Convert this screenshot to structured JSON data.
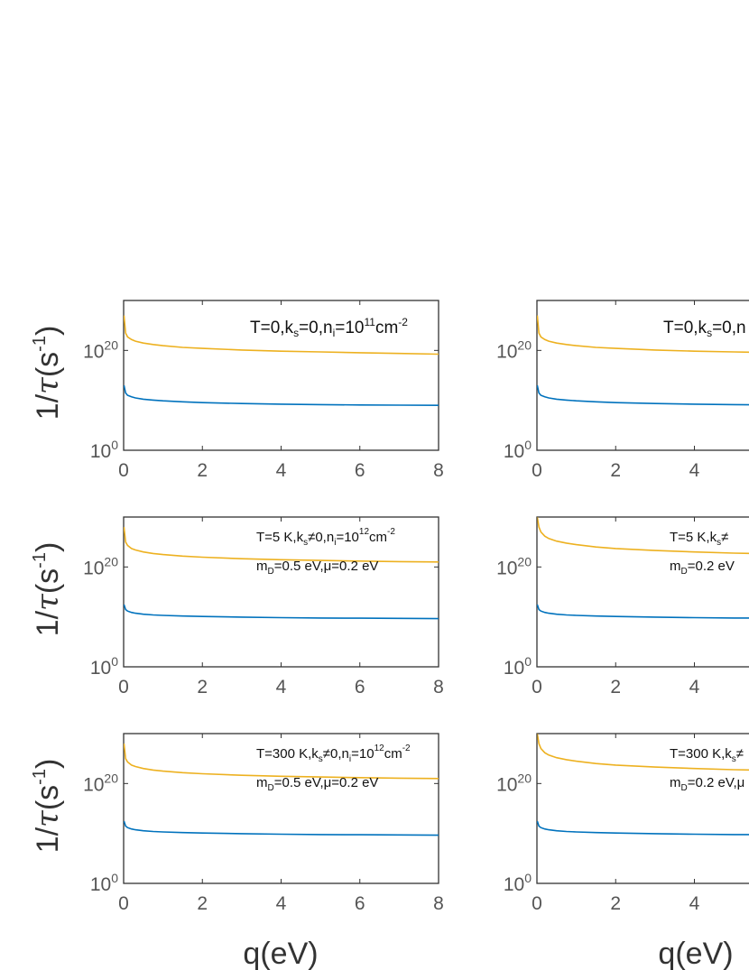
{
  "colors": {
    "series_a": "#EDB120",
    "series_b": "#0072BD",
    "axes": "#333333",
    "tick_text": "#555555"
  },
  "ylabel": {
    "main": "1/",
    "tau": "τ",
    "open": "(s",
    "exp": "-1",
    "close": ")"
  },
  "xlabel": "q(eV)",
  "chart_data": [
    {
      "type": "line",
      "id": "r1c1",
      "scale_y": "log",
      "grid": false,
      "annotation": {
        "line1": "T=0,k",
        "sub1": "s",
        "mid1": "=0,n",
        "sub2": "i",
        "mid2": "=10",
        "sup1": "11",
        "tail1": "cm",
        "sup2": "-2",
        "line2_pre": "",
        "line2_sub": "",
        "line2_post": ""
      },
      "xlim": [
        0,
        8
      ],
      "ylim": [
        1,
        1e+30
      ],
      "xticks": [
        "0",
        "2",
        "4",
        "6",
        "8"
      ],
      "yticks": [
        {
          "base": "10",
          "exp": "0",
          "value": 1
        },
        {
          "base": "10",
          "exp": "20",
          "value": 1e+20
        }
      ],
      "series": [
        {
          "x": [
            0.01,
            0.05,
            0.1,
            0.2,
            0.3,
            0.5,
            0.75,
            1,
            1.5,
            2,
            3,
            4,
            5,
            6,
            7,
            8
          ],
          "y": [
            1e+27,
            3e+23,
            5e+22,
            1.5e+22,
            7e+21,
            3e+21,
            1.5e+21,
            9e+20,
            4e+20,
            2.5e+20,
            1.2e+20,
            7e+19,
            5e+19,
            3.5e+19,
            2.5e+19,
            1.8e+19
          ]
        },
        {
          "x": [
            0.01,
            0.05,
            0.1,
            0.2,
            0.3,
            0.5,
            0.75,
            1,
            1.5,
            2,
            3,
            4,
            5,
            6,
            7,
            8
          ],
          "y": [
            10000000000000.0,
            300000000000.0,
            100000000000.0,
            50000000000.0,
            30000000000.0,
            17000000000.0,
            11000000000.0,
            8000000000.0,
            5000000000.0,
            3500000000.0,
            2300000000.0,
            1700000000.0,
            1400000000.0,
            1200000000.0,
            1100000000.0,
            1000000000.0
          ]
        }
      ]
    },
    {
      "type": "line",
      "id": "r1c2",
      "scale_y": "log",
      "grid": false,
      "annotation": {
        "line1": "T=0,k",
        "sub1": "s",
        "mid1": "=0,n",
        "sub2": "",
        "mid2": "",
        "sup1": "",
        "tail1": "",
        "sup2": "",
        "line2_pre": "",
        "line2_sub": "",
        "line2_post": ""
      },
      "xlim": [
        0,
        8
      ],
      "ylim": [
        1,
        1e+30
      ],
      "xticks": [
        "0",
        "2",
        "4"
      ],
      "yticks": [
        {
          "base": "10",
          "exp": "0",
          "value": 1
        },
        {
          "base": "10",
          "exp": "20",
          "value": 1e+20
        }
      ],
      "series": [
        {
          "x": [
            0.01,
            0.05,
            0.1,
            0.2,
            0.3,
            0.5,
            0.75,
            1,
            1.5,
            2,
            3,
            4,
            5,
            6,
            7,
            8
          ],
          "y": [
            1e+27,
            3e+23,
            5e+22,
            1.5e+22,
            7e+21,
            3e+21,
            1.5e+21,
            9e+20,
            4e+20,
            2.5e+20,
            1.2e+20,
            7e+19,
            5e+19,
            3.5e+19,
            2.5e+19,
            1.8e+19
          ]
        },
        {
          "x": [
            0.01,
            0.05,
            0.1,
            0.2,
            0.3,
            0.5,
            0.75,
            1,
            1.5,
            2,
            3,
            4,
            5,
            6,
            7,
            8
          ],
          "y": [
            10000000000000.0,
            300000000000.0,
            100000000000.0,
            50000000000.0,
            30000000000.0,
            17000000000.0,
            11000000000.0,
            8000000000.0,
            5000000000.0,
            3500000000.0,
            2300000000.0,
            1700000000.0,
            1400000000.0,
            1200000000.0,
            1100000000.0,
            1000000000.0
          ]
        }
      ]
    },
    {
      "type": "line",
      "id": "r2c1",
      "scale_y": "log",
      "grid": false,
      "annotation": {
        "line1": "T=5 K,k",
        "sub1": "s",
        "mid1": "≠0,n",
        "sub2": "i",
        "mid2": "=10",
        "sup1": "12",
        "tail1": "cm",
        "sup2": "-2",
        "line2_pre": "m",
        "line2_sub": "D",
        "line2_post": "=0.5 eV,μ=0.2 eV"
      },
      "xlim": [
        0,
        8
      ],
      "ylim": [
        1,
        1e+30
      ],
      "xticks": [
        "0",
        "2",
        "4",
        "6",
        "8"
      ],
      "yticks": [
        {
          "base": "10",
          "exp": "0",
          "value": 1
        },
        {
          "base": "10",
          "exp": "20",
          "value": 1e+20
        }
      ],
      "series": [
        {
          "x": [
            0.01,
            0.05,
            0.1,
            0.2,
            0.3,
            0.5,
            0.75,
            1,
            1.5,
            2,
            3,
            4,
            5,
            6,
            7,
            8
          ],
          "y": [
            1e+28,
            1e+25,
            2e+24,
            5e+23,
            2.5e+23,
            1e+23,
            5e+22,
            3e+22,
            1.5e+22,
            9e+21,
            4.5e+21,
            2.8e+21,
            2e+21,
            1.5e+21,
            1.2e+21,
            1e+21
          ]
        },
        {
          "x": [
            0.01,
            0.05,
            0.1,
            0.2,
            0.3,
            0.5,
            0.75,
            1,
            1.5,
            2,
            3,
            4,
            5,
            6,
            7,
            8
          ],
          "y": [
            3000000000000.0,
            300000000000.0,
            150000000000.0,
            80000000000.0,
            55000000000.0,
            35000000000.0,
            25000000000.0,
            20000000000.0,
            15000000000.0,
            12000000000.0,
            9000000000.0,
            7000000000.0,
            6000000000.0,
            5500000000.0,
            5000000000.0,
            4500000000.0
          ]
        }
      ]
    },
    {
      "type": "line",
      "id": "r2c2",
      "scale_y": "log",
      "grid": false,
      "annotation": {
        "line1": "T=5 K,k",
        "sub1": "s",
        "mid1": "≠",
        "sub2": "",
        "mid2": "",
        "sup1": "",
        "tail1": "",
        "sup2": "",
        "line2_pre": "m",
        "line2_sub": "D",
        "line2_post": "=0.2 eV"
      },
      "xlim": [
        0,
        8
      ],
      "ylim": [
        1,
        1e+30
      ],
      "xticks": [
        "0",
        "2",
        "4"
      ],
      "yticks": [
        {
          "base": "10",
          "exp": "0",
          "value": 1
        },
        {
          "base": "10",
          "exp": "20",
          "value": 1e+20
        }
      ],
      "series": [
        {
          "x": [
            0.01,
            0.05,
            0.1,
            0.2,
            0.3,
            0.5,
            0.75,
            1,
            1.5,
            2,
            3,
            4,
            5,
            6,
            7,
            8
          ],
          "y": [
            1e+30,
            1e+28,
            1e+27,
            1.5e+26,
            5e+25,
            1.5e+25,
            6e+24,
            3e+24,
            1e+24,
            5e+23,
            2e+23,
            1e+23,
            6e+22,
            4e+22,
            3e+22,
            2.2e+22
          ]
        },
        {
          "x": [
            0.01,
            0.05,
            0.1,
            0.2,
            0.3,
            0.5,
            0.75,
            1,
            1.5,
            2,
            3,
            4,
            5,
            6,
            7,
            8
          ],
          "y": [
            3000000000000.0,
            300000000000.0,
            150000000000.0,
            80000000000.0,
            55000000000.0,
            35000000000.0,
            25000000000.0,
            20000000000.0,
            15000000000.0,
            12000000000.0,
            9000000000.0,
            7000000000.0,
            6000000000.0,
            5500000000.0,
            5000000000.0,
            4500000000.0
          ]
        }
      ]
    },
    {
      "type": "line",
      "id": "r3c1",
      "scale_y": "log",
      "grid": false,
      "annotation": {
        "line1": "T=300 K,k",
        "sub1": "s",
        "mid1": "≠0,n",
        "sub2": "i",
        "mid2": "=10",
        "sup1": "12",
        "tail1": "cm",
        "sup2": "-2",
        "line2_pre": "m",
        "line2_sub": "D",
        "line2_post": "=0.5 eV,μ=0.2 eV"
      },
      "xlim": [
        0,
        8
      ],
      "ylim": [
        1,
        1e+30
      ],
      "xticks": [
        "0",
        "2",
        "4",
        "6",
        "8"
      ],
      "yticks": [
        {
          "base": "10",
          "exp": "0",
          "value": 1
        },
        {
          "base": "10",
          "exp": "20",
          "value": 1e+20
        }
      ],
      "series": [
        {
          "x": [
            0.01,
            0.05,
            0.1,
            0.2,
            0.3,
            0.5,
            0.75,
            1,
            1.5,
            2,
            3,
            4,
            5,
            6,
            7,
            8
          ],
          "y": [
            1e+28,
            1e+25,
            2e+24,
            5e+23,
            2.5e+23,
            1e+23,
            5e+22,
            3e+22,
            1.5e+22,
            9e+21,
            4.5e+21,
            2.8e+21,
            2e+21,
            1.5e+21,
            1.2e+21,
            1e+21
          ]
        },
        {
          "x": [
            0.01,
            0.05,
            0.1,
            0.2,
            0.3,
            0.5,
            0.75,
            1,
            1.5,
            2,
            3,
            4,
            5,
            6,
            7,
            8
          ],
          "y": [
            3000000000000.0,
            300000000000.0,
            150000000000.0,
            80000000000.0,
            55000000000.0,
            35000000000.0,
            25000000000.0,
            20000000000.0,
            15000000000.0,
            12000000000.0,
            9000000000.0,
            7000000000.0,
            6000000000.0,
            5500000000.0,
            5000000000.0,
            4500000000.0
          ]
        }
      ]
    },
    {
      "type": "line",
      "id": "r3c2",
      "scale_y": "log",
      "grid": false,
      "annotation": {
        "line1": "T=300 K,k",
        "sub1": "s",
        "mid1": "≠",
        "sub2": "",
        "mid2": "",
        "sup1": "",
        "tail1": "",
        "sup2": "",
        "line2_pre": "m",
        "line2_sub": "D",
        "line2_post": "=0.2 eV,μ"
      },
      "xlim": [
        0,
        8
      ],
      "ylim": [
        1,
        1e+30
      ],
      "xticks": [
        "0",
        "2",
        "4"
      ],
      "yticks": [
        {
          "base": "10",
          "exp": "0",
          "value": 1
        },
        {
          "base": "10",
          "exp": "20",
          "value": 1e+20
        }
      ],
      "series": [
        {
          "x": [
            0.01,
            0.05,
            0.1,
            0.2,
            0.3,
            0.5,
            0.75,
            1,
            1.5,
            2,
            3,
            4,
            5,
            6,
            7,
            8
          ],
          "y": [
            1e+30,
            1e+28,
            1e+27,
            1.5e+26,
            5e+25,
            1.5e+25,
            6e+24,
            3e+24,
            1e+24,
            5e+23,
            2e+23,
            1e+23,
            6e+22,
            4e+22,
            3e+22,
            2.2e+22
          ]
        },
        {
          "x": [
            0.01,
            0.05,
            0.1,
            0.2,
            0.3,
            0.5,
            0.75,
            1,
            1.5,
            2,
            3,
            4,
            5,
            6,
            7,
            8
          ],
          "y": [
            3000000000000.0,
            300000000000.0,
            150000000000.0,
            80000000000.0,
            55000000000.0,
            35000000000.0,
            25000000000.0,
            20000000000.0,
            15000000000.0,
            12000000000.0,
            9000000000.0,
            7000000000.0,
            6000000000.0,
            5500000000.0,
            5000000000.0,
            4500000000.0
          ]
        }
      ]
    }
  ]
}
